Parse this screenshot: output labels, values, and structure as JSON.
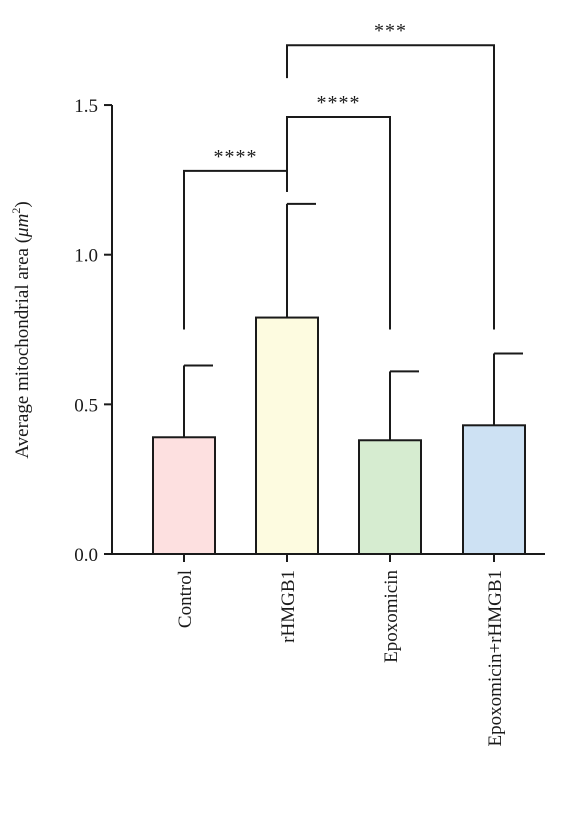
{
  "chart_data": {
    "type": "bar",
    "title": "",
    "ylabel_main": "Average mitochondrial area (",
    "ylabel_unit_prefix": "μm",
    "ylabel_unit_exp": "2",
    "ylabel_close": ")",
    "ylim": [
      0,
      1.5
    ],
    "yticks": [
      {
        "value": 0.0,
        "label": "0.0"
      },
      {
        "value": 0.5,
        "label": "0.5"
      },
      {
        "value": 1.0,
        "label": "1.0"
      },
      {
        "value": 1.5,
        "label": "1.5"
      }
    ],
    "categories": [
      "Control",
      "rHMGB1",
      "Epoxomicin",
      "Epoxomicin+rHMGB1"
    ],
    "values": [
      0.39,
      0.79,
      0.38,
      0.43
    ],
    "errors": [
      0.24,
      0.38,
      0.23,
      0.24
    ],
    "colors": [
      "#fde0e0",
      "#fdfbe0",
      "#d6ecd0",
      "#cde1f3"
    ],
    "grid": false,
    "significance": [
      {
        "from": 0,
        "to": 1,
        "label": "****",
        "y": 1.28
      },
      {
        "from": 1,
        "to": 2,
        "label": "****",
        "y": 1.46
      },
      {
        "from": 1,
        "to": 3,
        "label": "***",
        "y": 1.7
      }
    ]
  }
}
